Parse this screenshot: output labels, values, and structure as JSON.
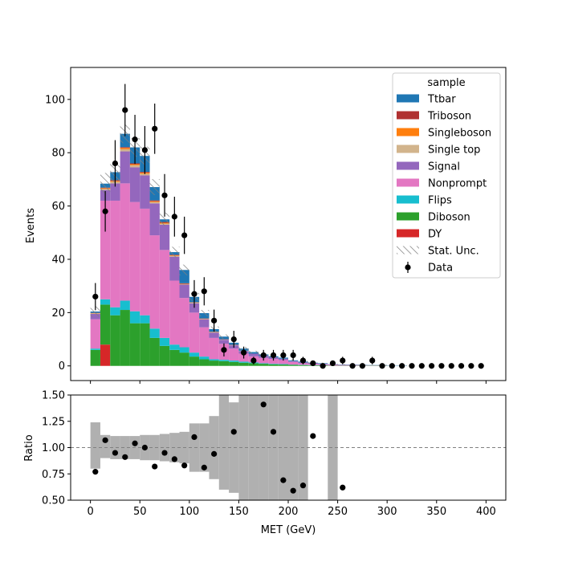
{
  "chart_data": [
    {
      "type": "bar",
      "stacked": true,
      "xlabel": "",
      "ylabel": "Events",
      "ylim": [
        -5.5,
        112
      ],
      "xlim": [
        -20,
        420
      ],
      "x_ticks": [
        "0",
        "50",
        "100",
        "150",
        "200",
        "250",
        "300",
        "350",
        "400"
      ],
      "y_ticks": [
        "0",
        "20",
        "40",
        "60",
        "80",
        "100"
      ],
      "bin_edges": [
        0,
        10,
        20,
        30,
        40,
        50,
        60,
        70,
        80,
        90,
        100,
        110,
        120,
        130,
        140,
        150,
        160,
        170,
        180,
        190,
        200,
        210,
        220,
        230,
        240,
        250,
        260,
        270,
        280,
        290,
        300,
        310,
        320,
        330,
        340,
        350,
        360,
        370,
        380,
        390,
        400
      ],
      "legend": {
        "title": "sample",
        "placement": "top-right",
        "entries": [
          {
            "label": "Ttbar",
            "color": "#1f77b4",
            "kind": "patch"
          },
          {
            "label": "Triboson",
            "color": "#b03030",
            "kind": "patch"
          },
          {
            "label": "Singleboson",
            "color": "#ff7f0e",
            "kind": "patch"
          },
          {
            "label": "Single top",
            "color": "#d2b48c",
            "kind": "patch"
          },
          {
            "label": "Signal",
            "color": "#9467bd",
            "kind": "patch"
          },
          {
            "label": "Nonprompt",
            "color": "#e377c2",
            "kind": "patch"
          },
          {
            "label": "Flips",
            "color": "#17becf",
            "kind": "patch"
          },
          {
            "label": "Diboson",
            "color": "#2ca02c",
            "kind": "patch"
          },
          {
            "label": "DY",
            "color": "#d62728",
            "kind": "patch"
          },
          {
            "label": "Stat. Unc.",
            "color": "#888888",
            "kind": "hatch"
          },
          {
            "label": "Data",
            "color": "#000000",
            "kind": "marker"
          }
        ]
      },
      "series": [
        {
          "name": "DY",
          "color": "#d62728",
          "values": [
            0,
            8,
            0,
            0,
            0,
            0,
            0,
            0,
            0,
            0,
            0,
            0,
            0,
            0,
            0,
            0,
            0,
            0,
            0,
            0,
            0,
            0,
            0,
            0,
            0,
            0,
            0,
            0,
            0,
            0,
            0,
            0,
            0,
            0,
            0,
            0,
            0,
            0,
            0,
            0
          ]
        },
        {
          "name": "Diboson",
          "color": "#2ca02c",
          "values": [
            6,
            15,
            19,
            21,
            16,
            16,
            10.5,
            7.5,
            6,
            5,
            3.5,
            2.5,
            2,
            1.8,
            1.5,
            1.2,
            1,
            0.8,
            0.6,
            0.5,
            0.4,
            0.3,
            0.2,
            0.2,
            0.1,
            0.1,
            0.1,
            0.1,
            0.1,
            0.1,
            0,
            0,
            0,
            0,
            0,
            0,
            0,
            0,
            0,
            0
          ]
        },
        {
          "name": "Flips",
          "color": "#17becf",
          "values": [
            0.5,
            2,
            3,
            3.5,
            4.5,
            3,
            3.5,
            3,
            2,
            2,
            1.5,
            1,
            0.5,
            0.5,
            0.5,
            0.4,
            0.3,
            0.2,
            0.2,
            0.2,
            0.1,
            0.1,
            0.1,
            0.1,
            0,
            0,
            0,
            0,
            0,
            0,
            0,
            0,
            0,
            0,
            0,
            0,
            0,
            0,
            0,
            0
          ]
        },
        {
          "name": "Nonprompt",
          "color": "#e377c2",
          "values": [
            11,
            37,
            40,
            44,
            41,
            40,
            35,
            33,
            24,
            18.5,
            15,
            11,
            8,
            6,
            4.5,
            3,
            2.3,
            2,
            1.8,
            1.5,
            1,
            0.6,
            0.5,
            0.3,
            0.3,
            0.2,
            0.2,
            0.1,
            0.1,
            0.1,
            0,
            0,
            0,
            0,
            0,
            0,
            0,
            0,
            0,
            0
          ]
        },
        {
          "name": "Signal",
          "color": "#9467bd",
          "values": [
            2,
            4,
            6.5,
            12,
            13,
            12.5,
            12,
            9.5,
            9,
            5,
            3.5,
            3,
            2,
            1.5,
            1.2,
            1,
            1,
            0.8,
            0.6,
            0.5,
            0.3,
            0.3,
            0.2,
            0.2,
            0.1,
            0.1,
            0.1,
            0.1,
            0,
            0,
            0,
            0,
            0,
            0,
            0,
            0,
            0,
            0,
            0,
            0
          ]
        },
        {
          "name": "Single top",
          "color": "#d2b48c",
          "values": [
            0.2,
            0.4,
            0.6,
            0.8,
            0.8,
            0.6,
            0.5,
            0.4,
            0.3,
            0.2,
            0.2,
            0.1,
            0.1,
            0.1,
            0.1,
            0.1,
            0,
            0,
            0,
            0,
            0,
            0,
            0,
            0,
            0,
            0,
            0,
            0,
            0,
            0,
            0,
            0,
            0,
            0,
            0,
            0,
            0,
            0,
            0,
            0
          ]
        },
        {
          "name": "Singleboson",
          "color": "#ff7f0e",
          "values": [
            0.1,
            0.3,
            0.3,
            0.5,
            0.4,
            0.4,
            0.3,
            0.3,
            0.2,
            0.1,
            0.1,
            0.1,
            0.1,
            0,
            0,
            0,
            0,
            0,
            0,
            0,
            0,
            0,
            0,
            0,
            0,
            0,
            0,
            0,
            0,
            0,
            0,
            0,
            0,
            0,
            0,
            0,
            0,
            0,
            0,
            0
          ]
        },
        {
          "name": "Triboson",
          "color": "#b03030",
          "values": [
            0.1,
            0.2,
            0.3,
            0.3,
            0.3,
            0.3,
            0.3,
            0.3,
            0.2,
            0.2,
            0.1,
            0.1,
            0.1,
            0.1,
            0.1,
            0,
            0,
            0,
            0,
            0,
            0,
            0,
            0,
            0,
            0,
            0,
            0,
            0,
            0,
            0,
            0,
            0,
            0,
            0,
            0,
            0,
            0,
            0,
            0,
            0
          ]
        },
        {
          "name": "Ttbar",
          "color": "#1f77b4",
          "values": [
            0.5,
            1.5,
            3,
            5,
            6,
            6,
            5,
            1,
            1,
            5,
            2,
            2,
            1,
            1,
            0.8,
            0.8,
            0.6,
            0.5,
            0.4,
            0.4,
            0.3,
            0.3,
            0.2,
            0.2,
            0.1,
            0.1,
            0.1,
            0.1,
            0.1,
            0.1,
            0.1,
            0.1,
            0,
            0,
            0,
            0,
            0,
            0,
            0,
            0
          ]
        }
      ],
      "stat_unc": [
        2,
        4,
        4,
        3.5,
        3.5,
        3.5,
        3,
        2.5,
        2,
        2,
        1.5,
        1.2,
        1,
        0.8,
        0.7,
        0.6,
        0.5,
        0.4,
        0.4,
        0.3,
        0.3,
        0.3,
        0.2,
        0.2,
        0.2,
        0.2,
        0.1,
        0.1,
        0.1,
        0.1,
        0.1,
        0.1,
        0.1,
        0.1,
        0.1,
        0.1,
        0.1,
        0.1,
        0.1,
        0.1
      ],
      "data": {
        "name": "Data",
        "x": [
          5,
          15,
          25,
          35,
          45,
          55,
          65,
          75,
          85,
          95,
          105,
          115,
          125,
          135,
          145,
          155,
          165,
          175,
          185,
          195,
          205,
          215,
          225,
          235,
          245,
          255,
          265,
          275,
          285,
          295,
          305,
          315,
          325,
          335,
          345,
          355,
          365,
          375,
          385,
          395
        ],
        "y": [
          26,
          58,
          76,
          96,
          85,
          81,
          89,
          64,
          56,
          49,
          27,
          28,
          17,
          6,
          10,
          5,
          2,
          4,
          4,
          4,
          4,
          2,
          1,
          0,
          1,
          2,
          0,
          0,
          2,
          0,
          0,
          0,
          0,
          0,
          0,
          0,
          0,
          0,
          0,
          0
        ]
      }
    },
    {
      "type": "scatter",
      "xlabel": "MET (GeV)",
      "ylabel": "Ratio",
      "ylim": [
        0.5,
        1.5
      ],
      "xlim": [
        -20,
        420
      ],
      "x_ticks": [
        "0",
        "50",
        "100",
        "150",
        "200",
        "250",
        "300",
        "350",
        "400"
      ],
      "y_ticks": [
        "0.50",
        "0.75",
        "1.00",
        "1.25",
        "1.50"
      ],
      "reference_line": 1.0,
      "unc_band": {
        "color": "#b0b0b0",
        "low": [
          0.8,
          0.9,
          0.89,
          0.89,
          0.89,
          0.88,
          0.88,
          0.87,
          0.86,
          0.85,
          0.77,
          0.77,
          0.7,
          0.6,
          0.57,
          0.45,
          0.45,
          0.4,
          0.4,
          0.4,
          0.4,
          0.4,
          null,
          null,
          0.4,
          null,
          null,
          null,
          null,
          null,
          null,
          null,
          null,
          null,
          null,
          null,
          null,
          null,
          null,
          null
        ],
        "high": [
          1.24,
          1.12,
          1.11,
          1.11,
          1.11,
          1.12,
          1.12,
          1.13,
          1.14,
          1.15,
          1.23,
          1.23,
          1.3,
          1.5,
          1.43,
          1.55,
          1.55,
          1.6,
          1.6,
          1.6,
          1.6,
          1.6,
          null,
          null,
          1.6,
          null,
          null,
          null,
          null,
          null,
          null,
          null,
          null,
          null,
          null,
          null,
          null,
          null,
          null,
          null
        ]
      },
      "points": {
        "x": [
          5,
          15,
          25,
          35,
          45,
          55,
          65,
          75,
          85,
          95,
          105,
          115,
          125,
          145,
          175,
          185,
          195,
          205,
          215,
          225,
          255
        ],
        "y": [
          0.77,
          1.07,
          0.95,
          0.91,
          1.04,
          1.0,
          0.82,
          0.95,
          0.89,
          0.83,
          1.1,
          0.81,
          0.94,
          1.15,
          1.41,
          1.15,
          0.69,
          0.59,
          0.64,
          1.11,
          0.62
        ]
      }
    }
  ]
}
